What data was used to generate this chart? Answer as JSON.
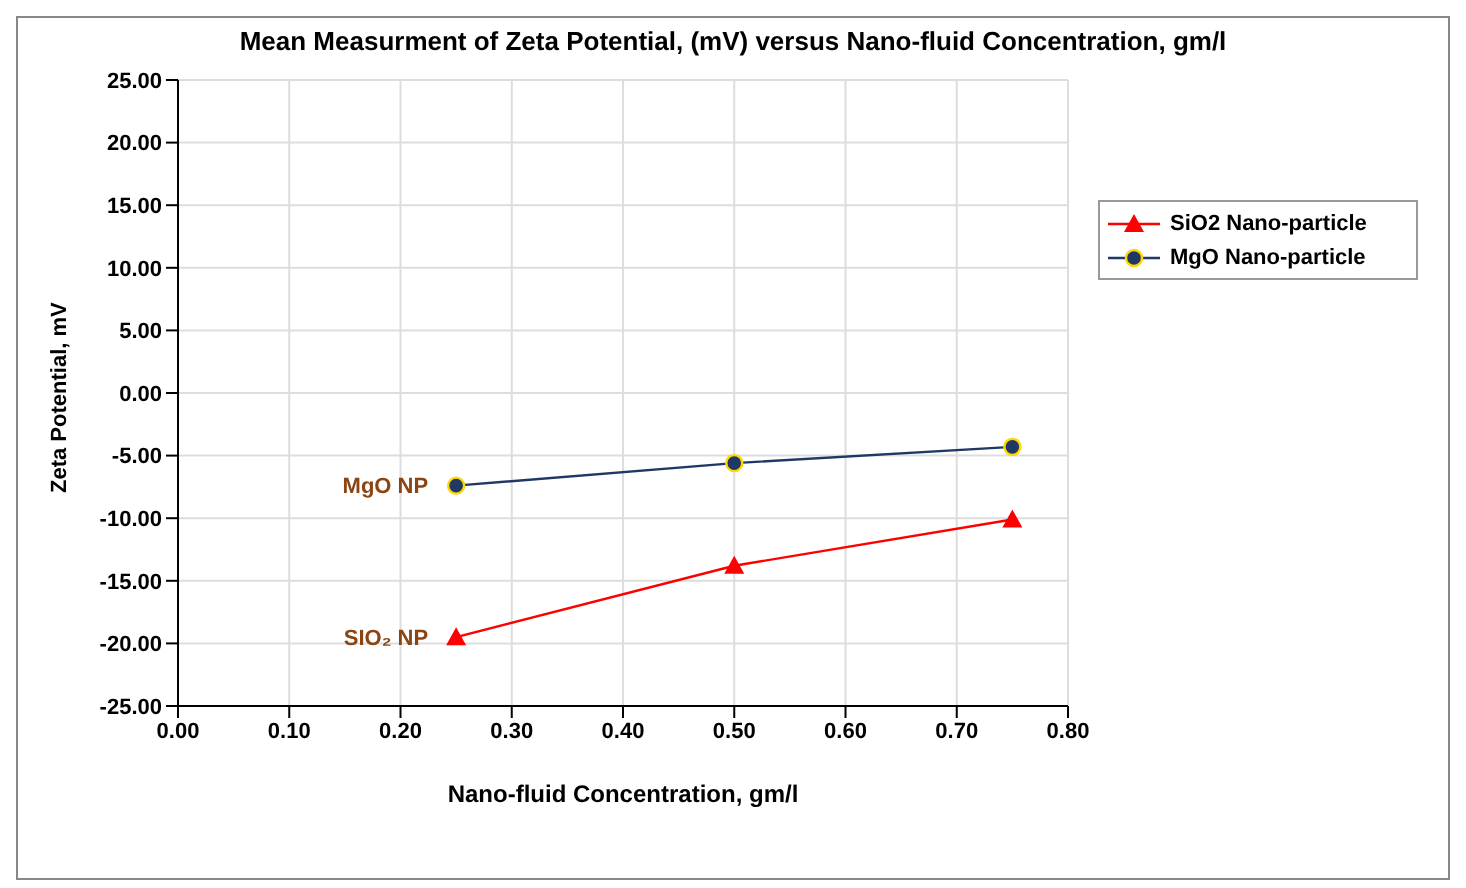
{
  "chart_data": {
    "type": "line",
    "title": "Mean Measurment of Zeta Potential, (mV) versus Nano-fluid Concentration, gm/l",
    "xlabel": "Nano-fluid Concentration, gm/l",
    "ylabel": "Zeta Potential, mV",
    "x": [
      0.25,
      0.5,
      0.75
    ],
    "series": [
      {
        "name": "SiO2 Nano-particle",
        "color": "#ff0000",
        "marker": "triangle",
        "values": [
          -19.5,
          -13.8,
          -10.1
        ]
      },
      {
        "name": "MgO Nano-particle",
        "color": "#1f3864",
        "marker": "circle",
        "values": [
          -7.4,
          -5.6,
          -4.3
        ]
      }
    ],
    "xlim": [
      0,
      0.8
    ],
    "xticks": [
      {
        "value": 0,
        "label": "0.00"
      },
      {
        "value": 0.1,
        "label": "0.10"
      },
      {
        "value": 0.2,
        "label": "0.20"
      },
      {
        "value": 0.3,
        "label": "0.30"
      },
      {
        "value": 0.4,
        "label": "0.40"
      },
      {
        "value": 0.5,
        "label": "0.50"
      },
      {
        "value": 0.6,
        "label": "0.60"
      },
      {
        "value": 0.7,
        "label": "0.70"
      },
      {
        "value": 0.8,
        "label": "0.80"
      }
    ],
    "ylim": [
      -25,
      25
    ],
    "yticks": [
      {
        "value": -25,
        "label": "-25.00"
      },
      {
        "value": -20,
        "label": "-20.00"
      },
      {
        "value": -15,
        "label": "-15.00"
      },
      {
        "value": -10,
        "label": "-10.00"
      },
      {
        "value": -5,
        "label": "-5.00"
      },
      {
        "value": 0,
        "label": "0.00"
      },
      {
        "value": 5,
        "label": "5.00"
      },
      {
        "value": 10,
        "label": "10.00"
      },
      {
        "value": 15,
        "label": "15.00"
      },
      {
        "value": 20,
        "label": "20.00"
      },
      {
        "value": 25,
        "label": "25.00"
      }
    ],
    "annotations": [
      {
        "text": "MgO NP",
        "x": 0.25,
        "y": -7.4
      },
      {
        "text": "SIO₂ NP",
        "x": 0.25,
        "y": -19.5
      }
    ],
    "grid": true,
    "legend": "top right",
    "line_style": "solid"
  }
}
